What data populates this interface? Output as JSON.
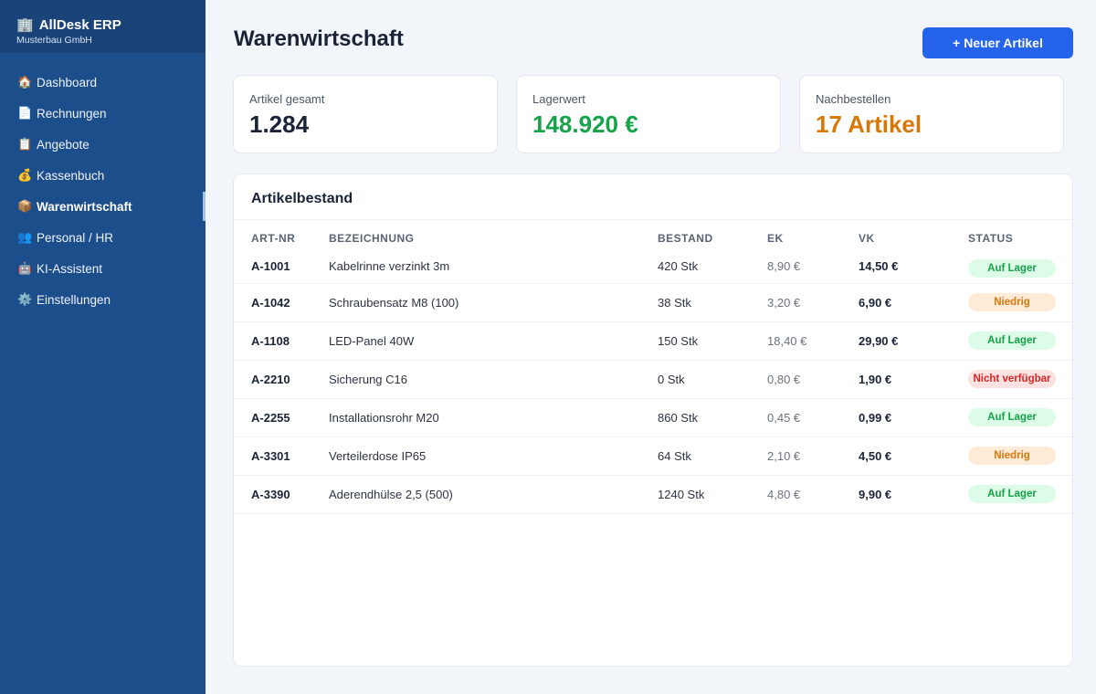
{
  "app": {
    "name": "AllDesk ERP",
    "company": "Musterbau GmbH",
    "logo_icon": "🏢"
  },
  "sidebar": {
    "items": [
      {
        "icon": "🏠",
        "icon_name": "home-icon",
        "label": "Dashboard",
        "active": false
      },
      {
        "icon": "📄",
        "icon_name": "document-icon",
        "label": "Rechnungen",
        "active": false
      },
      {
        "icon": "📋",
        "icon_name": "clipboard-icon",
        "label": "Angebote",
        "active": false
      },
      {
        "icon": "💰",
        "icon_name": "money-bag-icon",
        "label": "Kassenbuch",
        "active": false
      },
      {
        "icon": "📦",
        "icon_name": "package-icon",
        "label": "Warenwirtschaft",
        "active": true
      },
      {
        "icon": "👥",
        "icon_name": "people-icon",
        "label": "Personal / HR",
        "active": false
      },
      {
        "icon": "🤖",
        "icon_name": "robot-icon",
        "label": "KI-Assistent",
        "active": false
      },
      {
        "icon": "⚙️",
        "icon_name": "gear-icon",
        "label": "Einstellungen",
        "active": false
      }
    ]
  },
  "header": {
    "title": "Warenwirtschaft",
    "new_button_label": "+ Neuer Artikel"
  },
  "stats": [
    {
      "label": "Artikel gesamt",
      "value": "1.284",
      "color": "#1a2436"
    },
    {
      "label": "Lagerwert",
      "value": "148.920 €",
      "color": "#16a34a"
    },
    {
      "label": "Nachbestellen",
      "value": "17 Artikel",
      "color": "#d97706"
    }
  ],
  "inventory": {
    "title": "Artikelbestand",
    "columns": [
      "ART-NR",
      "BEZEICHNUNG",
      "BESTAND",
      "EK",
      "VK",
      "STATUS"
    ],
    "rows": [
      {
        "art_nr": "A-1001",
        "name": "Kabelrinne verzinkt 3m",
        "stock": "420 Stk",
        "ek": "8,90 €",
        "vk": "14,50 €",
        "status": "Auf Lager",
        "status_type": "ok"
      },
      {
        "art_nr": "A-1042",
        "name": "Schraubensatz M8 (100)",
        "stock": "38 Stk",
        "ek": "3,20 €",
        "vk": "6,90 €",
        "status": "Niedrig",
        "status_type": "low"
      },
      {
        "art_nr": "A-1108",
        "name": "LED-Panel 40W",
        "stock": "150 Stk",
        "ek": "18,40 €",
        "vk": "29,90 €",
        "status": "Auf Lager",
        "status_type": "ok"
      },
      {
        "art_nr": "A-2210",
        "name": "Sicherung C16",
        "stock": "0 Stk",
        "ek": "0,80 €",
        "vk": "1,90 €",
        "status": "Nicht verfügbar",
        "status_type": "none"
      },
      {
        "art_nr": "A-2255",
        "name": "Installationsrohr M20",
        "stock": "860 Stk",
        "ek": "0,45 €",
        "vk": "0,99 €",
        "status": "Auf Lager",
        "status_type": "ok"
      },
      {
        "art_nr": "A-3301",
        "name": "Verteilerdose IP65",
        "stock": "64 Stk",
        "ek": "2,10 €",
        "vk": "4,50 €",
        "status": "Niedrig",
        "status_type": "low"
      },
      {
        "art_nr": "A-3390",
        "name": "Aderendhülse 2,5 (500)",
        "stock": "1240 Stk",
        "ek": "4,80 €",
        "vk": "9,90 €",
        "status": "Auf Lager",
        "status_type": "ok"
      }
    ]
  }
}
